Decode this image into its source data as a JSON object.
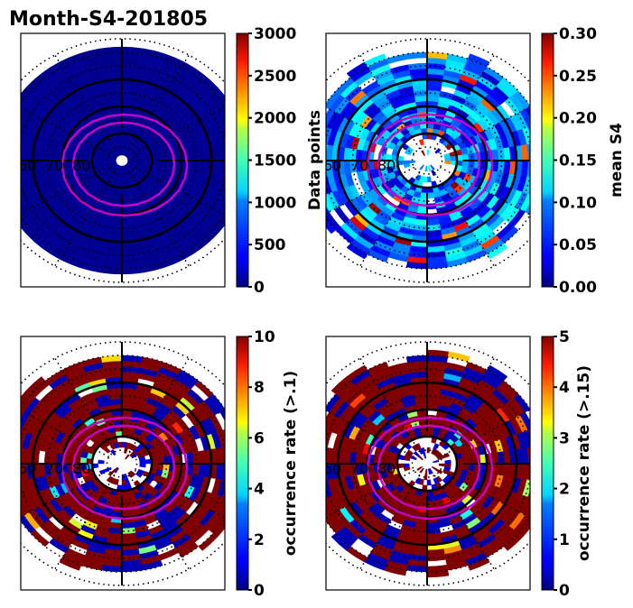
{
  "figure": {
    "title": "Month-S4-201805"
  },
  "chart_data": [
    {
      "type": "heatmap",
      "projection": "polar (magnetic latitude / local time)",
      "panel": "top-left",
      "title": "Month-S4-201805",
      "colorbar": {
        "label": "Data points",
        "cmap": "jet",
        "range": [
          0,
          3000
        ],
        "ticks": [
          "0",
          "500",
          "1000",
          "1500",
          "2000",
          "2500",
          "3000"
        ]
      },
      "latitude_labels": [
        "60",
        "70",
        "80"
      ],
      "latitude_rings_solid": [
        60,
        70,
        80
      ],
      "grid": "dotted",
      "fill_description": "uniform low values (~0-100) across whole disk from 50 to 90 deg",
      "approx_value": 50,
      "oval_contours": 2
    },
    {
      "type": "heatmap",
      "projection": "polar (magnetic latitude / local time)",
      "panel": "top-right",
      "colorbar": {
        "label": "mean S4",
        "cmap": "jet",
        "range": [
          0.0,
          0.3
        ],
        "ticks": [
          "0.00",
          "0.05",
          "0.10",
          "0.15",
          "0.20",
          "0.25",
          "0.30"
        ]
      },
      "latitude_labels": [
        "60",
        "70",
        "80"
      ],
      "latitude_rings_solid": [
        60,
        70,
        80
      ],
      "grid": "dotted",
      "fill_description": "mostly 0.03-0.12, sparse high values (0.2-0.3) on outer edge and near pole",
      "typical_range": [
        0.03,
        0.12
      ],
      "oval_contours": 2
    },
    {
      "type": "heatmap",
      "projection": "polar (magnetic latitude / local time)",
      "panel": "bottom-left",
      "colorbar": {
        "label": "occurrence rate (>.1)",
        "cmap": "jet",
        "range": [
          0,
          10
        ],
        "ticks": [
          "0",
          "2",
          "4",
          "6",
          "8",
          "10"
        ]
      },
      "latitude_labels": [
        "60",
        "70",
        "80"
      ],
      "latitude_rings_solid": [
        60,
        70,
        80
      ],
      "grid": "dotted",
      "fill_description": "mostly saturated (>=10) with scattered near-zero cells, sparse near pole",
      "typical_value": 10,
      "oval_contours": 2
    },
    {
      "type": "heatmap",
      "projection": "polar (magnetic latitude / local time)",
      "panel": "bottom-right",
      "colorbar": {
        "label": "occurrence rate (>.15)",
        "cmap": "jet",
        "range": [
          0,
          5
        ],
        "ticks": [
          "0",
          "1",
          "2",
          "3",
          "4",
          "5"
        ]
      },
      "latitude_labels": [
        "60",
        "70",
        "80"
      ],
      "latitude_rings_solid": [
        60,
        70,
        80
      ],
      "grid": "dotted",
      "fill_description": "mostly saturated (>=5) with scattered near-zero cells, sparse near pole",
      "typical_value": 5,
      "oval_contours": 2
    }
  ],
  "colors": {
    "contour": "#c800c8",
    "frame": "#000000",
    "saturated": "#800000",
    "low": "#00008f"
  }
}
